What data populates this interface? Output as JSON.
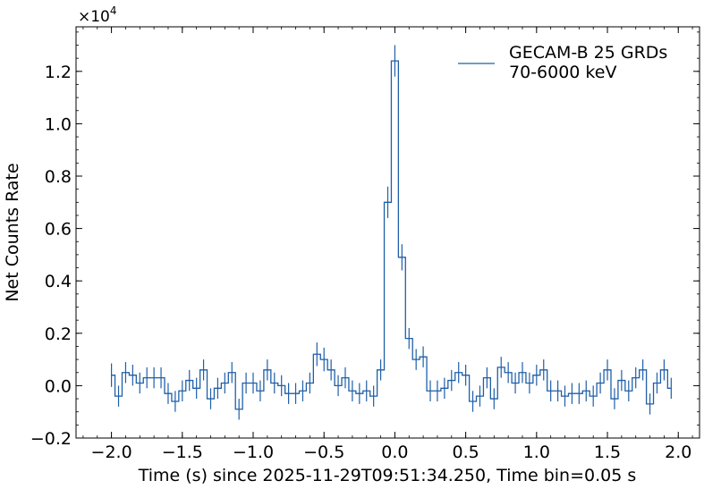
{
  "chart_data": {
    "type": "line",
    "title": "",
    "xlabel": "Time (s) since 2025-11-29T09:51:34.250, Time bin=0.05 s",
    "ylabel": "Net Counts Rate",
    "y_offset_label": "×10",
    "y_offset_exponent": "4",
    "y_scale_factor": 10000,
    "xlim": [
      -2.25,
      2.15
    ],
    "ylim": [
      -2000,
      13700
    ],
    "x_ticks": [
      -2.0,
      -1.5,
      -1.0,
      -0.5,
      0.0,
      0.5,
      1.0,
      1.5,
      2.0
    ],
    "x_tick_labels": [
      "−2.0",
      "−1.5",
      "−1.0",
      "−0.5",
      "0.0",
      "0.5",
      "1.0",
      "1.5",
      "2.0"
    ],
    "y_ticks": [
      -2000,
      0,
      2000,
      4000,
      6000,
      8000,
      10000,
      12000
    ],
    "y_tick_labels": [
      "−0.2",
      "0.0",
      "0.2",
      "0.4",
      "0.6",
      "0.8",
      "1.0",
      "1.2"
    ],
    "legend_position": "top-right",
    "grid": false,
    "series": [
      {
        "name": "GECAM-B 25 GRDs\n70-6000 keV",
        "color": "#1f5fa8",
        "style": "steps-mid",
        "bin_width": 0.05,
        "x": [
          -2.0,
          -1.95,
          -1.9,
          -1.85,
          -1.8,
          -1.75,
          -1.7,
          -1.65,
          -1.6,
          -1.55,
          -1.5,
          -1.45,
          -1.4,
          -1.35,
          -1.3,
          -1.25,
          -1.2,
          -1.15,
          -1.1,
          -1.05,
          -1.0,
          -0.95,
          -0.9,
          -0.85,
          -0.8,
          -0.75,
          -0.7,
          -0.65,
          -0.6,
          -0.55,
          -0.5,
          -0.45,
          -0.4,
          -0.35,
          -0.3,
          -0.25,
          -0.2,
          -0.15,
          -0.1,
          -0.05,
          0.0,
          0.05,
          0.1,
          0.15,
          0.2,
          0.25,
          0.3,
          0.35,
          0.4,
          0.45,
          0.5,
          0.55,
          0.6,
          0.65,
          0.7,
          0.75,
          0.8,
          0.85,
          0.9,
          0.95,
          1.0,
          1.05,
          1.1,
          1.15,
          1.2,
          1.25,
          1.3,
          1.35,
          1.4,
          1.45,
          1.5,
          1.55,
          1.6,
          1.65,
          1.7,
          1.75,
          1.8,
          1.85,
          1.9,
          1.95
        ],
        "y": [
          400,
          -400,
          500,
          400,
          100,
          300,
          300,
          300,
          -300,
          -600,
          -200,
          200,
          -100,
          600,
          -500,
          -100,
          100,
          500,
          -900,
          100,
          100,
          -200,
          600,
          100,
          0,
          -300,
          -300,
          -200,
          100,
          1200,
          1000,
          600,
          0,
          300,
          -200,
          -300,
          -200,
          -400,
          600,
          7000,
          12400,
          4900,
          1800,
          1000,
          1100,
          -200,
          -200,
          -100,
          200,
          500,
          400,
          -600,
          -400,
          300,
          -500,
          700,
          500,
          100,
          500,
          100,
          400,
          600,
          -200,
          -200,
          -400,
          -300,
          -300,
          -200,
          -400,
          100,
          600,
          -500,
          200,
          -200,
          300,
          600,
          -700,
          100,
          600,
          -100
        ],
        "yerr": [
          450,
          400,
          400,
          400,
          400,
          400,
          400,
          400,
          400,
          400,
          400,
          400,
          400,
          400,
          400,
          400,
          400,
          400,
          400,
          400,
          400,
          400,
          400,
          400,
          400,
          400,
          400,
          400,
          400,
          450,
          450,
          400,
          400,
          400,
          400,
          400,
          400,
          400,
          400,
          600,
          600,
          500,
          400,
          400,
          400,
          400,
          400,
          400,
          400,
          400,
          400,
          400,
          400,
          400,
          400,
          400,
          400,
          400,
          400,
          400,
          400,
          400,
          400,
          400,
          400,
          400,
          400,
          400,
          400,
          400,
          400,
          400,
          400,
          400,
          400,
          400,
          400,
          400,
          400,
          400
        ]
      }
    ]
  }
}
